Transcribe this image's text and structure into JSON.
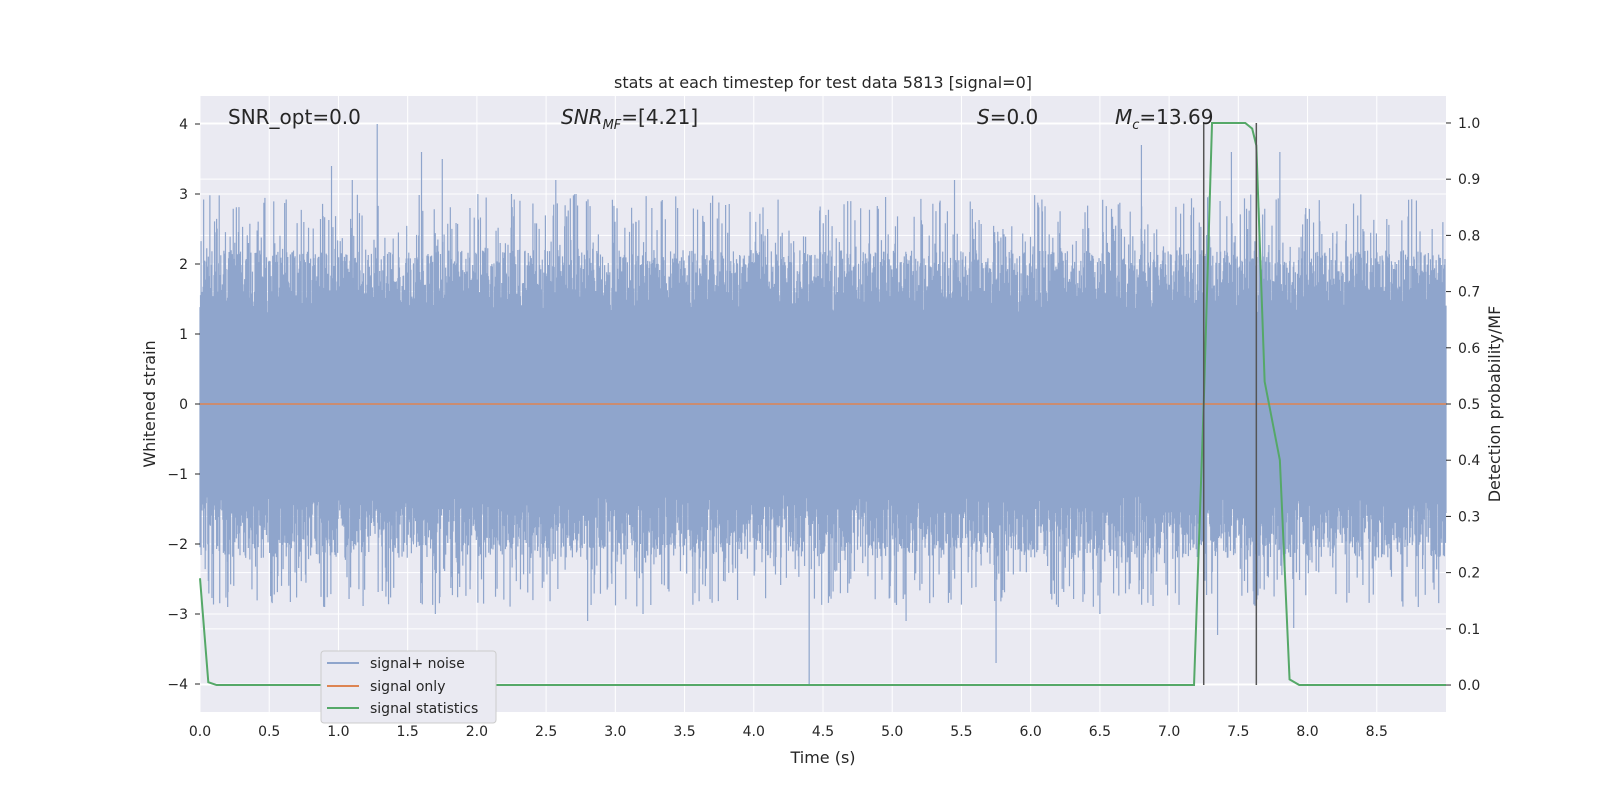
{
  "chart_data": {
    "type": "line",
    "title": "stats at each timestep for test data 5813 [signal=0]",
    "xlabel": "Time (s)",
    "ylabel": "Whitened strain",
    "ylabel_right": "Detection probability/MF",
    "xlim": [
      0.0,
      9.0
    ],
    "ylim": [
      -4.4,
      4.4
    ],
    "ylim_right": [
      -0.048,
      1.048
    ],
    "x_ticks": [
      "0.0",
      "0.5",
      "1.0",
      "1.5",
      "2.0",
      "2.5",
      "3.0",
      "3.5",
      "4.0",
      "4.5",
      "5.0",
      "5.5",
      "6.0",
      "6.5",
      "7.0",
      "7.5",
      "8.0",
      "8.5"
    ],
    "y_ticks": [
      "−4",
      "−3",
      "−2",
      "−1",
      "0",
      "1",
      "2",
      "3",
      "4"
    ],
    "y_ticks_right": [
      "0.0",
      "0.1",
      "0.2",
      "0.3",
      "0.4",
      "0.5",
      "0.6",
      "0.7",
      "0.8",
      "0.9",
      "1.0"
    ],
    "grid": true,
    "legend_position": "lower-left",
    "annotations": {
      "snr_opt": "SNR_opt=0.0",
      "snr_mf": "=[4.21]",
      "s_value": "=0.0",
      "mc_value": "=13.69"
    },
    "vlines_x": [
      7.25,
      7.63
    ],
    "series": [
      {
        "name": "signal+ noise",
        "color": "#8fa5cc",
        "axis": "left",
        "style": "dense noise, peaks approx",
        "peaks": [
          [
            0.05,
            1.8
          ],
          [
            0.35,
            2.3
          ],
          [
            0.75,
            2.6
          ],
          [
            0.95,
            3.4
          ],
          [
            1.1,
            3.2
          ],
          [
            1.28,
            4.0
          ],
          [
            1.6,
            3.6
          ],
          [
            1.75,
            3.5
          ],
          [
            1.95,
            2.8
          ],
          [
            2.25,
            3.0
          ],
          [
            2.57,
            3.2
          ],
          [
            3.15,
            2.6
          ],
          [
            3.45,
            2.8
          ],
          [
            4.1,
            2.5
          ],
          [
            5.45,
            3.2
          ],
          [
            6.6,
            2.5
          ],
          [
            6.8,
            3.7
          ],
          [
            7.45,
            3.6
          ],
          [
            7.8,
            3.6
          ],
          [
            8.4,
            2.5
          ],
          [
            8.9,
            2.5
          ]
        ],
        "troughs": [
          [
            0.2,
            -2.9
          ],
          [
            0.9,
            -2.9
          ],
          [
            1.7,
            -3.0
          ],
          [
            2.8,
            -3.1
          ],
          [
            3.2,
            -3.0
          ],
          [
            4.4,
            -4.0
          ],
          [
            5.1,
            -3.1
          ],
          [
            5.75,
            -3.7
          ],
          [
            6.2,
            -2.9
          ],
          [
            6.5,
            -3.0
          ],
          [
            7.35,
            -3.3
          ],
          [
            7.9,
            -3.2
          ],
          [
            8.3,
            -2.7
          ],
          [
            8.8,
            -2.9
          ]
        ]
      },
      {
        "name": "signal only",
        "color": "#dd8452",
        "axis": "left",
        "x": [
          0.0,
          9.0
        ],
        "y": [
          0.0,
          0.0
        ]
      },
      {
        "name": "signal statistics",
        "color": "#55a868",
        "axis": "right",
        "x": [
          0.0,
          0.06,
          0.12,
          0.2,
          7.18,
          7.25,
          7.31,
          7.4,
          7.55,
          7.6,
          7.63,
          7.69,
          7.8,
          7.87,
          7.94,
          9.0
        ],
        "y": [
          0.19,
          0.005,
          0.0,
          0.0,
          0.0,
          0.5,
          1.0,
          1.0,
          1.0,
          0.99,
          0.96,
          0.54,
          0.4,
          0.01,
          0.0,
          0.0
        ]
      }
    ]
  }
}
